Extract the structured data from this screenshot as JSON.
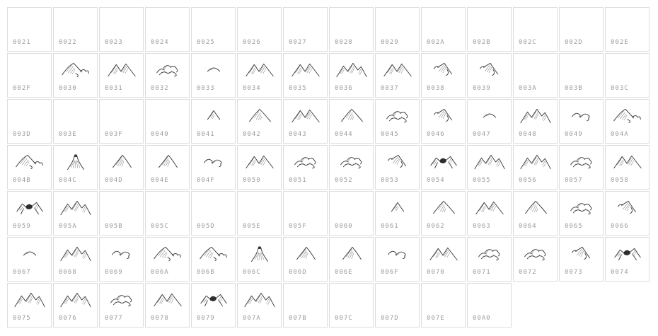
{
  "page": {
    "background": "#ffffff",
    "cell_border_color": "#dcdcdc",
    "code_label_color": "#9d9d9d",
    "glyph_ink_color": "#3d3d3d"
  },
  "grid": {
    "columns": 14,
    "cells": [
      {
        "code": "0021",
        "glyph": null
      },
      {
        "code": "0022",
        "glyph": null
      },
      {
        "code": "0023",
        "glyph": null
      },
      {
        "code": "0024",
        "glyph": null
      },
      {
        "code": "0025",
        "glyph": null
      },
      {
        "code": "0026",
        "glyph": null
      },
      {
        "code": "0027",
        "glyph": null
      },
      {
        "code": "0028",
        "glyph": null
      },
      {
        "code": "0029",
        "glyph": null
      },
      {
        "code": "002A",
        "glyph": null
      },
      {
        "code": "002B",
        "glyph": null
      },
      {
        "code": "002C",
        "glyph": null
      },
      {
        "code": "002D",
        "glyph": null
      },
      {
        "code": "002E",
        "glyph": null
      },
      {
        "code": "002F",
        "glyph": null
      },
      {
        "code": "0030",
        "glyph": "mountain-wide-range"
      },
      {
        "code": "0031",
        "glyph": "mountain-twin-peaks"
      },
      {
        "code": "0032",
        "glyph": "mountain-round-cluster"
      },
      {
        "code": "0033",
        "glyph": "mountain-small-hill"
      },
      {
        "code": "0034",
        "glyph": "mountain-twin-peaks"
      },
      {
        "code": "0035",
        "glyph": "mountain-twin-peaks"
      },
      {
        "code": "0036",
        "glyph": "mountain-triple-peaks"
      },
      {
        "code": "0037",
        "glyph": "mountain-twin-peaks"
      },
      {
        "code": "0038",
        "glyph": "mountain-leaning-peak"
      },
      {
        "code": "0039",
        "glyph": "mountain-leaning-peak"
      },
      {
        "code": "003A",
        "glyph": null
      },
      {
        "code": "003B",
        "glyph": null
      },
      {
        "code": "003C",
        "glyph": null
      },
      {
        "code": "003D",
        "glyph": null
      },
      {
        "code": "003E",
        "glyph": null
      },
      {
        "code": "003F",
        "glyph": null
      },
      {
        "code": "0040",
        "glyph": null
      },
      {
        "code": "0041",
        "glyph": "mountain-small-peak"
      },
      {
        "code": "0042",
        "glyph": "mountain-single-peak"
      },
      {
        "code": "0043",
        "glyph": "mountain-twin-peaks"
      },
      {
        "code": "0044",
        "glyph": "mountain-single-peak"
      },
      {
        "code": "0045",
        "glyph": "mountain-round-cluster"
      },
      {
        "code": "0046",
        "glyph": "mountain-leaning-peak"
      },
      {
        "code": "0047",
        "glyph": "mountain-small-hill"
      },
      {
        "code": "0048",
        "glyph": "mountain-triple-peaks"
      },
      {
        "code": "0049",
        "glyph": "mountain-rolling-hills"
      },
      {
        "code": "004A",
        "glyph": "mountain-wide-range"
      },
      {
        "code": "004B",
        "glyph": "mountain-wide-range"
      },
      {
        "code": "004C",
        "glyph": "mountain-volcano"
      },
      {
        "code": "004D",
        "glyph": "mountain-shaded-peak"
      },
      {
        "code": "004E",
        "glyph": "mountain-shaded-peak"
      },
      {
        "code": "004F",
        "glyph": "mountain-rolling-hills"
      },
      {
        "code": "0050",
        "glyph": "mountain-twin-peaks"
      },
      {
        "code": "0051",
        "glyph": "mountain-round-cluster"
      },
      {
        "code": "0052",
        "glyph": "mountain-round-cluster"
      },
      {
        "code": "0053",
        "glyph": "mountain-leaning-peak"
      },
      {
        "code": "0054",
        "glyph": "mountain-dark-peak"
      },
      {
        "code": "0055",
        "glyph": "mountain-triple-peaks"
      },
      {
        "code": "0056",
        "glyph": "mountain-triple-peaks"
      },
      {
        "code": "0057",
        "glyph": "mountain-round-cluster"
      },
      {
        "code": "0058",
        "glyph": "mountain-twin-peaks"
      },
      {
        "code": "0059",
        "glyph": "mountain-dark-peak"
      },
      {
        "code": "005A",
        "glyph": "mountain-triple-peaks"
      },
      {
        "code": "005B",
        "glyph": null
      },
      {
        "code": "005C",
        "glyph": null
      },
      {
        "code": "005D",
        "glyph": null
      },
      {
        "code": "005E",
        "glyph": null
      },
      {
        "code": "005F",
        "glyph": null
      },
      {
        "code": "0060",
        "glyph": null
      },
      {
        "code": "0061",
        "glyph": "mountain-small-peak"
      },
      {
        "code": "0062",
        "glyph": "mountain-single-peak"
      },
      {
        "code": "0063",
        "glyph": "mountain-twin-peaks"
      },
      {
        "code": "0064",
        "glyph": "mountain-single-peak"
      },
      {
        "code": "0065",
        "glyph": "mountain-round-cluster"
      },
      {
        "code": "0066",
        "glyph": "mountain-leaning-peak"
      },
      {
        "code": "0067",
        "glyph": "mountain-small-hill"
      },
      {
        "code": "0068",
        "glyph": "mountain-triple-peaks"
      },
      {
        "code": "0069",
        "glyph": "mountain-rolling-hills"
      },
      {
        "code": "006A",
        "glyph": "mountain-wide-range"
      },
      {
        "code": "006B",
        "glyph": "mountain-wide-range"
      },
      {
        "code": "006C",
        "glyph": "mountain-volcano"
      },
      {
        "code": "006D",
        "glyph": "mountain-shaded-peak"
      },
      {
        "code": "006E",
        "glyph": "mountain-shaded-peak"
      },
      {
        "code": "006F",
        "glyph": "mountain-rolling-hills"
      },
      {
        "code": "0070",
        "glyph": "mountain-twin-peaks"
      },
      {
        "code": "0071",
        "glyph": "mountain-round-cluster"
      },
      {
        "code": "0072",
        "glyph": "mountain-round-cluster"
      },
      {
        "code": "0073",
        "glyph": "mountain-leaning-peak"
      },
      {
        "code": "0074",
        "glyph": "mountain-dark-peak"
      },
      {
        "code": "0075",
        "glyph": "mountain-triple-peaks"
      },
      {
        "code": "0076",
        "glyph": "mountain-triple-peaks"
      },
      {
        "code": "0077",
        "glyph": "mountain-round-cluster"
      },
      {
        "code": "0078",
        "glyph": "mountain-twin-peaks"
      },
      {
        "code": "0079",
        "glyph": "mountain-dark-peak"
      },
      {
        "code": "007A",
        "glyph": "mountain-triple-peaks"
      },
      {
        "code": "007B",
        "glyph": null
      },
      {
        "code": "007C",
        "glyph": null
      },
      {
        "code": "007D",
        "glyph": null
      },
      {
        "code": "007E",
        "glyph": null
      },
      {
        "code": "00A0",
        "glyph": null
      }
    ]
  }
}
